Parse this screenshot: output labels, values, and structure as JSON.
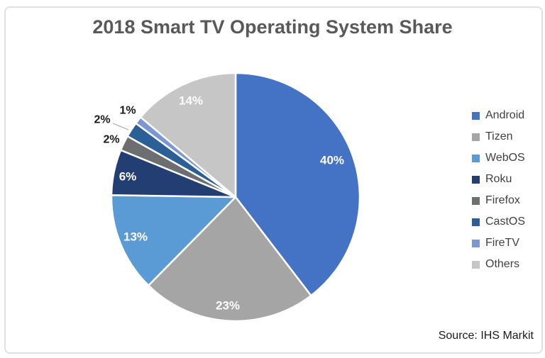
{
  "title": "2018 Smart TV Operating System Share",
  "source_note": "Source: IHS Markit",
  "chart_data": {
    "type": "pie",
    "title": "2018 Smart TV Operating System Share",
    "start_angle_deg": 0,
    "direction": "clockwise",
    "legend_position": "right",
    "label_format": "percent",
    "series": [
      {
        "name": "Android",
        "value": 40,
        "label": "40%",
        "color": "#4472C4"
      },
      {
        "name": "Tizen",
        "value": 23,
        "label": "23%",
        "color": "#A5A5A5"
      },
      {
        "name": "WebOS",
        "value": 13,
        "label": "13%",
        "color": "#5B9BD5"
      },
      {
        "name": "Roku",
        "value": 6,
        "label": "6%",
        "color": "#233E72"
      },
      {
        "name": "Firefox",
        "value": 2,
        "label": "2%",
        "color": "#6D6E70"
      },
      {
        "name": "CastOS",
        "value": 2,
        "label": "2%",
        "color": "#2B6096"
      },
      {
        "name": "FireTV",
        "value": 1,
        "label": "1%",
        "color": "#7C96D4"
      },
      {
        "name": "Others",
        "value": 14,
        "label": "14%",
        "color": "#C6C6C6"
      }
    ]
  }
}
